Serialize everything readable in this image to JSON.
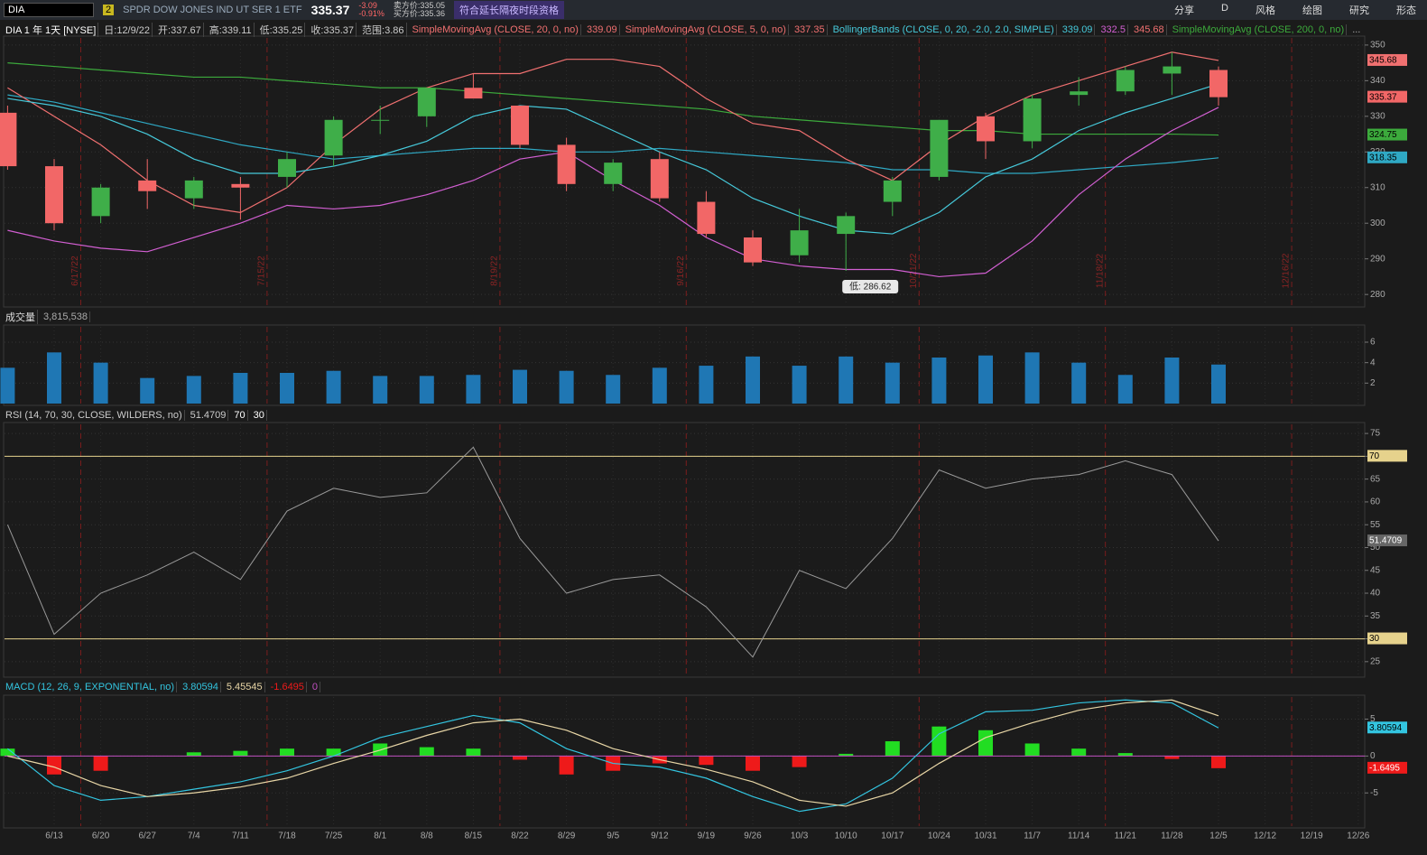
{
  "toolbar": {
    "symbol": "DIA",
    "link": "2",
    "description": "SPDR DOW JONES IND UT SER 1 ETF",
    "last": "335.37",
    "change": "-3.09",
    "change_pct": "-0.91%",
    "ask": "卖方价:335.05",
    "bid": "买方价:335.36",
    "notice": "符合延长隔夜时段资格",
    "buttons": [
      "分享",
      "D",
      "风格",
      "绘图",
      "研究",
      "形态"
    ]
  },
  "chart_data": [
    {
      "type": "candlestick",
      "title": "DIA 1 年 1天 [NYSE]",
      "stats": [
        "日:12/9/22",
        "开:337.67",
        "高:339.11",
        "低:335.25",
        "收:335.37",
        "范围:3.86"
      ],
      "categories": [
        null,
        "6/13",
        "6/20",
        "6/27",
        "7/4",
        "7/11",
        "7/18",
        "7/25",
        "8/1",
        "8/8",
        "8/15",
        "8/22",
        "8/29",
        "9/5",
        "9/12",
        "9/19",
        "9/26",
        "10/3",
        "10/10",
        "10/17",
        "10/24",
        "10/31",
        "11/7",
        "11/14",
        "11/21",
        "11/28",
        "12/5",
        "12/12",
        "12/19",
        "12/26"
      ],
      "open": [
        331,
        316,
        302,
        312,
        307,
        311,
        313,
        319,
        329,
        330,
        338,
        333,
        322,
        311,
        318,
        306,
        296,
        291,
        297,
        306,
        313,
        330,
        323,
        336,
        337,
        342,
        343,
        null,
        null,
        null
      ],
      "high": [
        333,
        318,
        311,
        318,
        313,
        313,
        320,
        330,
        333,
        338,
        342,
        333,
        324,
        318,
        320,
        309,
        298,
        304,
        303,
        313,
        329,
        331,
        336,
        341,
        344,
        348,
        344,
        null,
        null,
        null
      ],
      "low": [
        315,
        298,
        300,
        304,
        304,
        301,
        310,
        316,
        325,
        327,
        335,
        321,
        309,
        309,
        306,
        296,
        288,
        289,
        286.62,
        302,
        312,
        318,
        321,
        333,
        336,
        336,
        333,
        null,
        null,
        null
      ],
      "close": [
        316,
        300,
        310,
        309,
        312,
        310,
        318,
        329,
        329,
        338,
        335,
        322,
        311,
        317,
        307,
        297,
        289,
        298,
        302,
        312,
        329,
        323,
        335,
        337,
        343,
        344,
        335.37,
        null,
        null,
        null
      ],
      "up_color": "#3fae49",
      "down_color": "#f26767",
      "series": [
        {
          "name": "SimpleMovingAvg (CLOSE, 20, 0, no)",
          "color": "#46c9da",
          "values": [
            335,
            333,
            330,
            325,
            318,
            314,
            314,
            316,
            319,
            323,
            330,
            333,
            332,
            326,
            320,
            315,
            307,
            302,
            298,
            297,
            303,
            313,
            318,
            326,
            331,
            335,
            339.09,
            null,
            null,
            null
          ]
        },
        {
          "name": "SimpleMovingAvg (CLOSE, 200, 0, no)",
          "color": "#3caa3c",
          "values": [
            345,
            344,
            343,
            342,
            341,
            341,
            340,
            339,
            338,
            338,
            337,
            336,
            335,
            334,
            333,
            332,
            330,
            329,
            328,
            327,
            326,
            326,
            325,
            325,
            325,
            325,
            324.75,
            null,
            null,
            null
          ]
        },
        {
          "color": "#2fa9c4",
          "values": [
            336,
            334,
            331,
            328,
            325,
            322,
            320,
            318,
            319,
            320,
            321,
            321,
            320,
            320,
            321,
            320,
            319,
            318,
            317,
            315,
            315,
            314,
            314,
            315,
            316,
            317,
            318.35,
            null,
            null,
            null
          ]
        }
      ],
      "bands": {
        "name": "BollingerBands (CLOSE, 0, 20, -2.0, 2.0, SIMPLE)",
        "upper_color": "#f07070",
        "lower_color": "#d25fd2",
        "upper": [
          338,
          330,
          322,
          312,
          305,
          303,
          310,
          322,
          332,
          338,
          342,
          342,
          346,
          346,
          344,
          335,
          328,
          326,
          318,
          312,
          322,
          330,
          336,
          340,
          344,
          348,
          345.68,
          null,
          null,
          null
        ],
        "lower": [
          298,
          295,
          293,
          292,
          296,
          300,
          305,
          304,
          305,
          308,
          312,
          318,
          320,
          312,
          305,
          296,
          290,
          288,
          287,
          287,
          285,
          286,
          295,
          308,
          318,
          326,
          332.5,
          null,
          null,
          null
        ]
      },
      "extra_studies": [
        {
          "name": "SimpleMovingAvg (CLOSE, 5, 0, no)",
          "value": 337.35
        }
      ],
      "more": "...",
      "low_annotation": "低: 286.62",
      "expirations": [
        "6/17/22",
        "7/15/22",
        "8/19/22",
        "9/16/22",
        "10/21/22",
        "11/18/22",
        "12/16/22"
      ],
      "ylim": [
        277,
        352
      ],
      "yticks": [
        280,
        290,
        300,
        310,
        320,
        330,
        340,
        350
      ],
      "grid": true
    },
    {
      "type": "bar",
      "title": "成交量",
      "last_label": "3,815,538",
      "color": "#1f77b4",
      "values": [
        3.5,
        5,
        4,
        2.5,
        2.7,
        3,
        3,
        3.2,
        2.7,
        2.7,
        2.8,
        3.3,
        3.2,
        2.8,
        3.5,
        3.7,
        4.6,
        3.7,
        4.6,
        4,
        4.5,
        4.7,
        5,
        4,
        2.8,
        4.5,
        3.815538,
        null,
        null,
        null
      ],
      "ylim": [
        0,
        7.5
      ],
      "yticks": [
        2,
        4,
        6
      ]
    },
    {
      "type": "line",
      "title": "RSI (14, 70, 30, CLOSE, WILDERS, no)",
      "color": "#9a9a9a",
      "level_color": "#e6d28c",
      "levels": [
        30,
        70
      ],
      "values": [
        55,
        31,
        40,
        44,
        49,
        43,
        58,
        63,
        61,
        62,
        72,
        52,
        40,
        43,
        44,
        37,
        26,
        45,
        41,
        52,
        67,
        63,
        65,
        66,
        69,
        66,
        51.4709,
        null,
        null,
        null
      ],
      "ylim": [
        22,
        77
      ],
      "yticks": [
        25,
        30,
        35,
        40,
        45,
        50,
        55,
        60,
        65,
        70,
        75
      ]
    },
    {
      "type": "macd",
      "title": "MACD (12, 26, 9, EXPONENTIAL, no)",
      "zero_line": 0,
      "series": [
        {
          "color": "#33c5e0",
          "values": [
            1,
            -4,
            -6,
            -5.5,
            -4.5,
            -3.5,
            -2,
            0,
            2.5,
            4,
            5.5,
            4.5,
            1,
            -1,
            -1.5,
            -3,
            -5.5,
            -7.5,
            -6.5,
            -3,
            3,
            6,
            6.2,
            7.2,
            7.6,
            7.2,
            3.80594,
            null,
            null,
            null
          ]
        },
        {
          "color": "#e8d6a6",
          "values": [
            0,
            -1.5,
            -4,
            -5.5,
            -5,
            -4.2,
            -3,
            -1,
            0.8,
            2.8,
            4.5,
            5,
            3.5,
            1,
            -0.5,
            -1.8,
            -3.5,
            -6,
            -6.8,
            -5,
            -1,
            2.5,
            4.5,
            6.2,
            7.2,
            7.6,
            5.45545,
            null,
            null,
            null
          ]
        }
      ],
      "histogram": {
        "up_color": "#22dd22",
        "down_color": "#ee1a1a",
        "values": [
          1,
          -2.5,
          -2,
          0,
          0.5,
          0.7,
          1,
          1,
          1.7,
          1.2,
          1,
          -0.5,
          -2.5,
          -2,
          -1,
          -1.2,
          -2,
          -1.5,
          0.3,
          2,
          4,
          3.5,
          1.7,
          1,
          0.4,
          -0.4,
          -1.6495,
          null,
          null,
          null
        ]
      },
      "ylim": [
        -9.5,
        8
      ],
      "yticks": [
        -5,
        0,
        5
      ]
    }
  ]
}
